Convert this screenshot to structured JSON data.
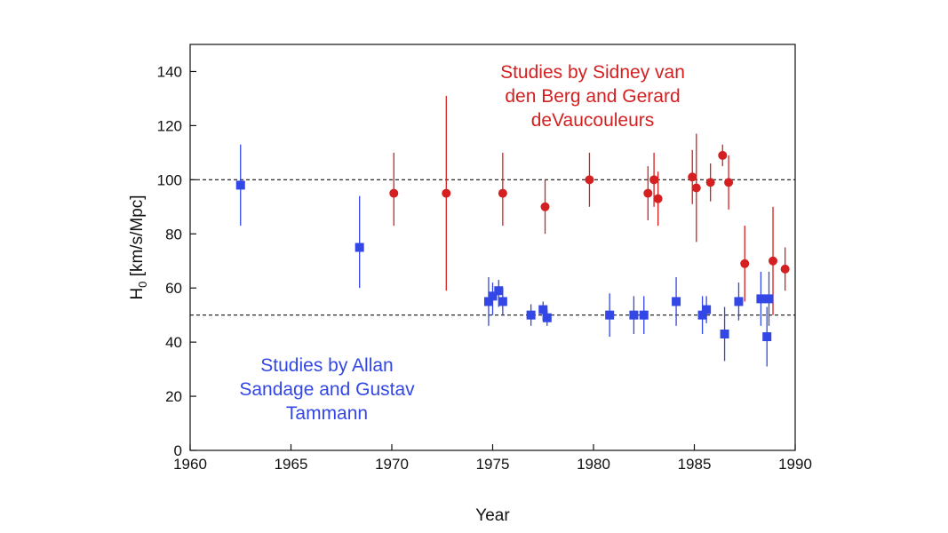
{
  "chart_data": {
    "type": "scatter",
    "title": "",
    "xlabel": "Year",
    "ylabel_main": "H",
    "ylabel_sub": "0",
    "ylabel_rest": " [km/s/Mpc]",
    "xlim": [
      1960,
      1990
    ],
    "ylim": [
      0,
      150
    ],
    "x_ticks": [
      1960,
      1965,
      1970,
      1975,
      1980,
      1985,
      1990
    ],
    "y_ticks": [
      0,
      20,
      40,
      60,
      80,
      100,
      120,
      140
    ],
    "reference_lines": [
      100,
      50
    ],
    "grid": false,
    "series": [
      {
        "color": "#d42020",
        "marker": "circle",
        "annotation": [
          "Studies by Sidney van",
          "den Berg and Gerard",
          "deVaucouleurs"
        ],
        "points": [
          {
            "x": 1970.1,
            "y": 95,
            "lo": 83,
            "hi": 110
          },
          {
            "x": 1972.7,
            "y": 95,
            "lo": 59,
            "hi": 131
          },
          {
            "x": 1975.5,
            "y": 95,
            "lo": 83,
            "hi": 110
          },
          {
            "x": 1977.6,
            "y": 90,
            "lo": 80,
            "hi": 100
          },
          {
            "x": 1979.8,
            "y": 100,
            "lo": 90,
            "hi": 110
          },
          {
            "x": 1982.7,
            "y": 95,
            "lo": 85,
            "hi": 105
          },
          {
            "x": 1983.0,
            "y": 100,
            "lo": 90,
            "hi": 110
          },
          {
            "x": 1983.2,
            "y": 93,
            "lo": 83,
            "hi": 103
          },
          {
            "x": 1984.9,
            "y": 101,
            "lo": 91,
            "hi": 111
          },
          {
            "x": 1985.1,
            "y": 97,
            "lo": 77,
            "hi": 117
          },
          {
            "x": 1985.8,
            "y": 99,
            "lo": 92,
            "hi": 106
          },
          {
            "x": 1986.4,
            "y": 109,
            "lo": 105,
            "hi": 113
          },
          {
            "x": 1986.7,
            "y": 99,
            "lo": 89,
            "hi": 109
          },
          {
            "x": 1987.5,
            "y": 69,
            "lo": 55,
            "hi": 83
          },
          {
            "x": 1988.9,
            "y": 70,
            "lo": 50,
            "hi": 90
          },
          {
            "x": 1989.5,
            "y": 67,
            "lo": 59,
            "hi": 75
          }
        ]
      },
      {
        "color": "#3347e6",
        "marker": "square",
        "annotation": [
          "Studies by Allan",
          "Sandage and Gustav",
          "Tammann"
        ],
        "points": [
          {
            "x": 1962.5,
            "y": 98,
            "lo": 83,
            "hi": 113
          },
          {
            "x": 1968.4,
            "y": 75,
            "lo": 60,
            "hi": 94
          },
          {
            "x": 1974.8,
            "y": 55,
            "lo": 46,
            "hi": 64
          },
          {
            "x": 1975.0,
            "y": 57,
            "lo": 50,
            "hi": 62
          },
          {
            "x": 1975.3,
            "y": 59,
            "lo": 53,
            "hi": 63
          },
          {
            "x": 1975.5,
            "y": 55,
            "lo": 50,
            "hi": 60
          },
          {
            "x": 1976.9,
            "y": 50,
            "lo": 46,
            "hi": 54
          },
          {
            "x": 1977.5,
            "y": 52,
            "lo": 48,
            "hi": 55
          },
          {
            "x": 1977.7,
            "y": 49,
            "lo": 46,
            "hi": 52
          },
          {
            "x": 1980.8,
            "y": 50,
            "lo": 42,
            "hi": 58
          },
          {
            "x": 1982.0,
            "y": 50,
            "lo": 43,
            "hi": 57
          },
          {
            "x": 1982.5,
            "y": 50,
            "lo": 43,
            "hi": 57
          },
          {
            "x": 1984.1,
            "y": 55,
            "lo": 46,
            "hi": 64
          },
          {
            "x": 1985.4,
            "y": 50,
            "lo": 43,
            "hi": 57
          },
          {
            "x": 1985.6,
            "y": 52,
            "lo": 47,
            "hi": 57
          },
          {
            "x": 1986.5,
            "y": 43,
            "lo": 33,
            "hi": 53
          },
          {
            "x": 1987.2,
            "y": 55,
            "lo": 48,
            "hi": 62
          },
          {
            "x": 1988.3,
            "y": 56,
            "lo": 46,
            "hi": 66
          },
          {
            "x": 1988.7,
            "y": 56,
            "lo": 46,
            "hi": 66
          },
          {
            "x": 1988.6,
            "y": 42,
            "lo": 31,
            "hi": 53
          }
        ]
      }
    ]
  }
}
